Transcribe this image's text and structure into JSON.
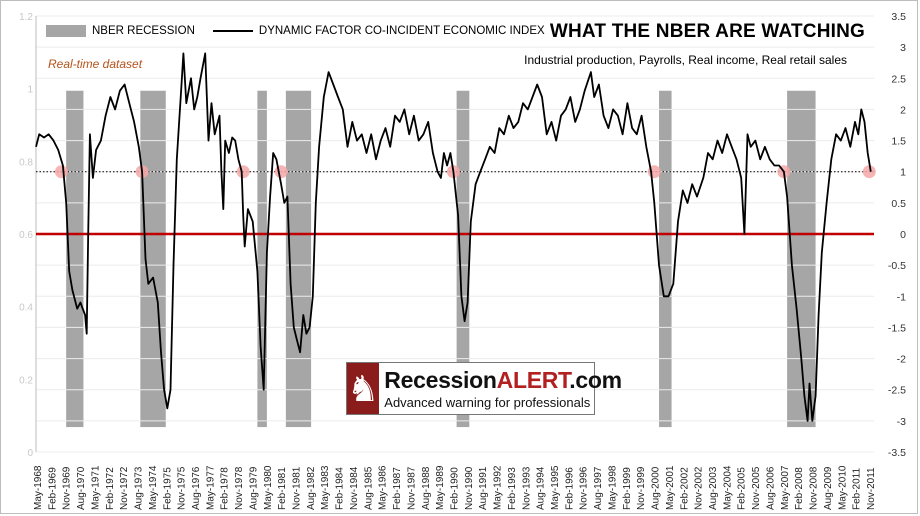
{
  "chart_data": {
    "type": "line",
    "title": "WHAT THE NBER ARE WATCHING",
    "subtitle": "Industrial production, Payrolls, Real income, Real retail sales",
    "annotation": "Real-time dataset",
    "legend": {
      "placement": "top-left",
      "recession_label": "NBER RECESSION",
      "series_label": "DYNAMIC FACTOR CO-INCIDENT ECONOMIC INDEX"
    },
    "y_right": {
      "ylim": [
        -3.5,
        3.5
      ],
      "ticks": [
        "3.5",
        "3",
        "2.5",
        "2",
        "1.5",
        "1",
        "0.5",
        "0",
        "-0.5",
        "-1",
        "-1.5",
        "-2",
        "-2.5",
        "-3",
        "-3.5"
      ]
    },
    "y_left": {
      "ylim": [
        0,
        1.2
      ],
      "ticks": [
        "1.2",
        "1",
        "0.8",
        "0.6",
        "0.4",
        "0.2",
        "0"
      ]
    },
    "x": {
      "start": 1968.33,
      "end": 2012.5,
      "ticks": [
        "May-1968",
        "Feb-1969",
        "Nov-1969",
        "Aug-1970",
        "May-1971",
        "Feb-1972",
        "Nov-1972",
        "Aug-1973",
        "May-1974",
        "Feb-1975",
        "Nov-1975",
        "Aug-1976",
        "May-1977",
        "Feb-1978",
        "Nov-1978",
        "Aug-1979",
        "May-1980",
        "Feb-1981",
        "Nov-1981",
        "Aug-1982",
        "May-1983",
        "Feb-1984",
        "Nov-1984",
        "Aug-1985",
        "May-1986",
        "Feb-1987",
        "Nov-1987",
        "Aug-1988",
        "May-1989",
        "Feb-1990",
        "Nov-1990",
        "Aug-1991",
        "May-1992",
        "Feb-1993",
        "Nov-1993",
        "Aug-1994",
        "May-1995",
        "Feb-1996",
        "Nov-1996",
        "Aug-1997",
        "May-1998",
        "Feb-1999",
        "Nov-1999",
        "Aug-2000",
        "May-2001",
        "Feb-2002",
        "Nov-2002",
        "Aug-2003",
        "May-2004",
        "Feb-2005",
        "Nov-2005",
        "Aug-2006",
        "May-2007",
        "Feb-2008",
        "Nov-2008",
        "Aug-2009",
        "May-2010",
        "Feb-2011",
        "Nov-2011"
      ]
    },
    "recessions": [
      [
        1969.92,
        1970.83
      ],
      [
        1973.83,
        1975.17
      ],
      [
        1980.0,
        1980.5
      ],
      [
        1981.5,
        1982.83
      ],
      [
        1990.5,
        1991.17
      ],
      [
        2001.17,
        2001.83
      ],
      [
        2007.92,
        2009.42
      ]
    ],
    "thresholds": {
      "zero_line": 0,
      "dotted_line": 1.0
    },
    "signal_points": [
      [
        1969.67,
        1.0
      ],
      [
        1973.92,
        1.0
      ],
      [
        1979.25,
        1.0
      ],
      [
        1981.25,
        1.0
      ],
      [
        1990.33,
        1.0
      ],
      [
        2000.92,
        1.0
      ],
      [
        2007.75,
        1.0
      ],
      [
        2012.25,
        1.0
      ]
    ],
    "series": [
      {
        "values": [
          [
            1968.33,
            1.4
          ],
          [
            1968.5,
            1.6
          ],
          [
            1968.75,
            1.55
          ],
          [
            1969.0,
            1.6
          ],
          [
            1969.25,
            1.5
          ],
          [
            1969.5,
            1.35
          ],
          [
            1969.75,
            1.1
          ],
          [
            1969.92,
            0.5
          ],
          [
            1970.08,
            -0.6
          ],
          [
            1970.25,
            -0.9
          ],
          [
            1970.5,
            -1.2
          ],
          [
            1970.67,
            -1.1
          ],
          [
            1970.92,
            -1.3
          ],
          [
            1971.0,
            -1.6
          ],
          [
            1971.08,
            0.0
          ],
          [
            1971.17,
            1.6
          ],
          [
            1971.33,
            0.9
          ],
          [
            1971.5,
            1.35
          ],
          [
            1971.75,
            1.5
          ],
          [
            1972.0,
            1.9
          ],
          [
            1972.25,
            2.2
          ],
          [
            1972.5,
            2.0
          ],
          [
            1972.75,
            2.3
          ],
          [
            1973.0,
            2.4
          ],
          [
            1973.25,
            2.1
          ],
          [
            1973.5,
            1.8
          ],
          [
            1973.75,
            1.4
          ],
          [
            1973.92,
            1.0
          ],
          [
            1974.1,
            -0.4
          ],
          [
            1974.25,
            -0.8
          ],
          [
            1974.5,
            -0.7
          ],
          [
            1974.75,
            -1.1
          ],
          [
            1974.92,
            -1.9
          ],
          [
            1975.08,
            -2.5
          ],
          [
            1975.25,
            -2.8
          ],
          [
            1975.42,
            -2.5
          ],
          [
            1975.58,
            -0.5
          ],
          [
            1975.75,
            1.2
          ],
          [
            1976.0,
            2.4
          ],
          [
            1976.1,
            2.9
          ],
          [
            1976.25,
            2.1
          ],
          [
            1976.5,
            2.5
          ],
          [
            1976.67,
            2.0
          ],
          [
            1976.83,
            2.2
          ],
          [
            1977.0,
            2.5
          ],
          [
            1977.25,
            2.9
          ],
          [
            1977.42,
            1.5
          ],
          [
            1977.58,
            2.1
          ],
          [
            1977.75,
            1.6
          ],
          [
            1978.0,
            1.9
          ],
          [
            1978.1,
            1.0
          ],
          [
            1978.2,
            0.4
          ],
          [
            1978.3,
            1.5
          ],
          [
            1978.5,
            1.3
          ],
          [
            1978.67,
            1.55
          ],
          [
            1978.83,
            1.5
          ],
          [
            1979.0,
            1.2
          ],
          [
            1979.17,
            1.0
          ],
          [
            1979.25,
            0.3
          ],
          [
            1979.33,
            -0.2
          ],
          [
            1979.5,
            0.4
          ],
          [
            1979.75,
            0.2
          ],
          [
            1980.0,
            -0.6
          ],
          [
            1980.17,
            -1.8
          ],
          [
            1980.33,
            -2.5
          ],
          [
            1980.5,
            -0.3
          ],
          [
            1980.67,
            0.6
          ],
          [
            1980.83,
            1.3
          ],
          [
            1981.0,
            1.2
          ],
          [
            1981.25,
            0.8
          ],
          [
            1981.42,
            0.5
          ],
          [
            1981.58,
            0.6
          ],
          [
            1981.75,
            -0.8
          ],
          [
            1981.92,
            -1.5
          ],
          [
            1982.08,
            -1.7
          ],
          [
            1982.25,
            -1.9
          ],
          [
            1982.42,
            -1.3
          ],
          [
            1982.58,
            -1.6
          ],
          [
            1982.75,
            -1.5
          ],
          [
            1982.92,
            -1.0
          ],
          [
            1983.08,
            0.5
          ],
          [
            1983.25,
            1.4
          ],
          [
            1983.5,
            2.2
          ],
          [
            1983.75,
            2.6
          ],
          [
            1984.0,
            2.4
          ],
          [
            1984.25,
            2.2
          ],
          [
            1984.5,
            2.0
          ],
          [
            1984.75,
            1.4
          ],
          [
            1985.0,
            1.8
          ],
          [
            1985.25,
            1.5
          ],
          [
            1985.5,
            1.6
          ],
          [
            1985.75,
            1.3
          ],
          [
            1986.0,
            1.6
          ],
          [
            1986.25,
            1.2
          ],
          [
            1986.5,
            1.5
          ],
          [
            1986.75,
            1.7
          ],
          [
            1987.0,
            1.4
          ],
          [
            1987.25,
            1.9
          ],
          [
            1987.5,
            1.8
          ],
          [
            1987.75,
            2.0
          ],
          [
            1988.0,
            1.6
          ],
          [
            1988.25,
            1.9
          ],
          [
            1988.5,
            1.5
          ],
          [
            1988.75,
            1.6
          ],
          [
            1989.0,
            1.8
          ],
          [
            1989.25,
            1.3
          ],
          [
            1989.5,
            1.0
          ],
          [
            1989.67,
            0.9
          ],
          [
            1989.83,
            1.3
          ],
          [
            1990.0,
            1.1
          ],
          [
            1990.17,
            1.3
          ],
          [
            1990.33,
            1.0
          ],
          [
            1990.58,
            0.3
          ],
          [
            1990.75,
            -1.0
          ],
          [
            1990.92,
            -1.4
          ],
          [
            1991.08,
            -1.1
          ],
          [
            1991.25,
            0.2
          ],
          [
            1991.5,
            0.8
          ],
          [
            1991.75,
            1.0
          ],
          [
            1992.0,
            1.2
          ],
          [
            1992.25,
            1.4
          ],
          [
            1992.5,
            1.3
          ],
          [
            1992.75,
            1.7
          ],
          [
            1993.0,
            1.6
          ],
          [
            1993.25,
            1.9
          ],
          [
            1993.5,
            1.7
          ],
          [
            1993.75,
            1.8
          ],
          [
            1994.0,
            2.1
          ],
          [
            1994.25,
            2.0
          ],
          [
            1994.5,
            2.2
          ],
          [
            1994.75,
            2.4
          ],
          [
            1995.0,
            2.2
          ],
          [
            1995.25,
            1.6
          ],
          [
            1995.5,
            1.8
          ],
          [
            1995.75,
            1.5
          ],
          [
            1996.0,
            1.9
          ],
          [
            1996.25,
            2.0
          ],
          [
            1996.5,
            2.2
          ],
          [
            1996.75,
            1.8
          ],
          [
            1997.0,
            2.0
          ],
          [
            1997.25,
            2.3
          ],
          [
            1997.58,
            2.6
          ],
          [
            1997.75,
            2.2
          ],
          [
            1998.0,
            2.4
          ],
          [
            1998.25,
            1.9
          ],
          [
            1998.5,
            1.7
          ],
          [
            1998.75,
            2.0
          ],
          [
            1999.0,
            1.9
          ],
          [
            1999.25,
            1.6
          ],
          [
            1999.5,
            2.1
          ],
          [
            1999.75,
            1.7
          ],
          [
            2000.0,
            1.6
          ],
          [
            2000.25,
            1.9
          ],
          [
            2000.5,
            1.4
          ],
          [
            2000.75,
            1.0
          ],
          [
            2000.92,
            0.5
          ],
          [
            2001.17,
            -0.5
          ],
          [
            2001.42,
            -1.0
          ],
          [
            2001.67,
            -1.0
          ],
          [
            2001.92,
            -0.8
          ],
          [
            2002.17,
            0.2
          ],
          [
            2002.42,
            0.7
          ],
          [
            2002.67,
            0.5
          ],
          [
            2002.92,
            0.8
          ],
          [
            2003.17,
            0.6
          ],
          [
            2003.5,
            0.9
          ],
          [
            2003.75,
            1.3
          ],
          [
            2004.0,
            1.2
          ],
          [
            2004.25,
            1.5
          ],
          [
            2004.5,
            1.3
          ],
          [
            2004.75,
            1.6
          ],
          [
            2005.0,
            1.4
          ],
          [
            2005.25,
            1.2
          ],
          [
            2005.5,
            0.9
          ],
          [
            2005.67,
            0.0
          ],
          [
            2005.83,
            1.6
          ],
          [
            2006.0,
            1.4
          ],
          [
            2006.25,
            1.5
          ],
          [
            2006.5,
            1.2
          ],
          [
            2006.75,
            1.4
          ],
          [
            2007.0,
            1.2
          ],
          [
            2007.25,
            1.1
          ],
          [
            2007.5,
            1.1
          ],
          [
            2007.75,
            1.0
          ],
          [
            2007.92,
            0.6
          ],
          [
            2008.17,
            -0.5
          ],
          [
            2008.42,
            -1.2
          ],
          [
            2008.67,
            -2.0
          ],
          [
            2008.83,
            -2.6
          ],
          [
            2009.0,
            -3.0
          ],
          [
            2009.1,
            -2.4
          ],
          [
            2009.25,
            -3.0
          ],
          [
            2009.42,
            -2.6
          ],
          [
            2009.58,
            -1.3
          ],
          [
            2009.75,
            -0.3
          ],
          [
            2010.0,
            0.5
          ],
          [
            2010.25,
            1.2
          ],
          [
            2010.5,
            1.6
          ],
          [
            2010.75,
            1.5
          ],
          [
            2011.0,
            1.7
          ],
          [
            2011.25,
            1.4
          ],
          [
            2011.5,
            1.8
          ],
          [
            2011.67,
            1.6
          ],
          [
            2011.83,
            2.0
          ],
          [
            2012.0,
            1.8
          ],
          [
            2012.17,
            1.3
          ],
          [
            2012.33,
            1.0
          ]
        ]
      }
    ],
    "colors": {
      "recession": "#a6a6a6",
      "series": "#000000",
      "zero_line": "#c00000",
      "signal_marker": "#f4a7a7"
    }
  },
  "logo": {
    "mark": "♞",
    "brand_main": "Recession",
    "brand_accent": "ALERT",
    "brand_suffix": ".com",
    "tagline": "Advanced warning for professionals"
  }
}
